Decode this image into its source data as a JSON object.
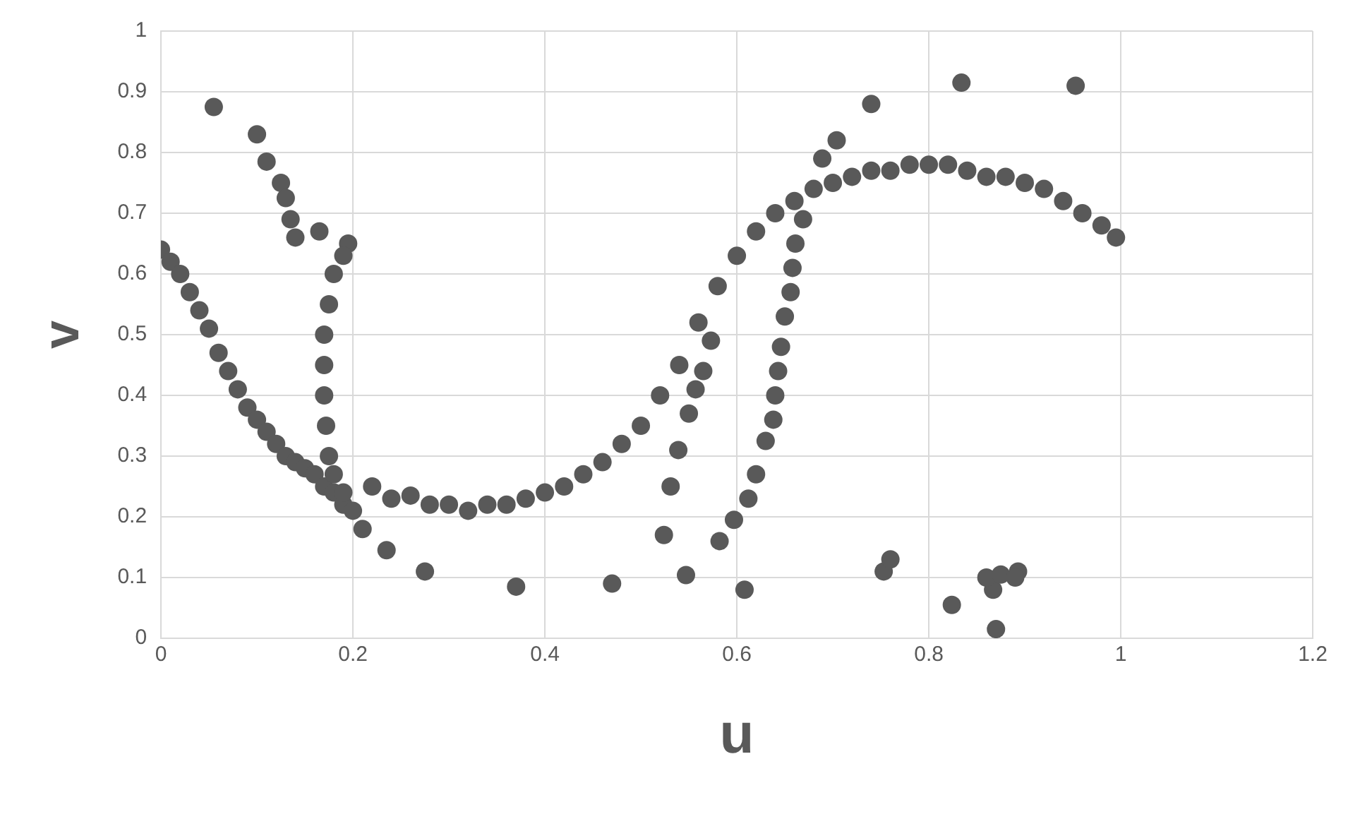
{
  "chart_data": {
    "type": "scatter",
    "xlabel": "u",
    "ylabel": "v",
    "xlim": [
      0,
      1.2
    ],
    "ylim": [
      0,
      1
    ],
    "xticks": [
      0,
      0.2,
      0.4,
      0.6,
      0.8,
      1,
      1.2
    ],
    "yticks": [
      0,
      0.1,
      0.2,
      0.3,
      0.4,
      0.5,
      0.6,
      0.7,
      0.8,
      0.9,
      1
    ],
    "grid": true,
    "legend": false,
    "marker": "circle",
    "series": [
      {
        "color": "#595959",
        "x": [
          0,
          0.01,
          0.02,
          0.03,
          0.04,
          0.05,
          0.06,
          0.07,
          0.08,
          0.09,
          0.1,
          0.11,
          0.12,
          0.13,
          0.14,
          0.15,
          0.16,
          0.17,
          0.18,
          0.19,
          0.2,
          0.22,
          0.24,
          0.26,
          0.28,
          0.3,
          0.32,
          0.34,
          0.36,
          0.38,
          0.4,
          0.42,
          0.44,
          0.46,
          0.48,
          0.5,
          0.52,
          0.54,
          0.56,
          0.58,
          0.6,
          0.62,
          0.64,
          0.66,
          0.68,
          0.7,
          0.72,
          0.74,
          0.76,
          0.78,
          0.8,
          0.82,
          0.84,
          0.86,
          0.88,
          0.9,
          0.92,
          0.94,
          0.96,
          0.98,
          0.995,
          0.195,
          0.19,
          0.18,
          0.175,
          0.17,
          0.17,
          0.17,
          0.172,
          0.175,
          0.18,
          0.19,
          0.055,
          0.1,
          0.11,
          0.125,
          0.13,
          0.135,
          0.14,
          0.165,
          0.21,
          0.235,
          0.275,
          0.37,
          0.47,
          0.547,
          0.524,
          0.531,
          0.539,
          0.55,
          0.557,
          0.565,
          0.573,
          0.608,
          0.582,
          0.597,
          0.612,
          0.62,
          0.63,
          0.638,
          0.64,
          0.643,
          0.646,
          0.65,
          0.656,
          0.658,
          0.661,
          0.669,
          0.689,
          0.704,
          0.74,
          0.834,
          0.953,
          0.753,
          0.76,
          0.824,
          0.87,
          0.867,
          0.86,
          0.875,
          0.893,
          0.89
        ],
        "values": [
          0.64,
          0.62,
          0.6,
          0.57,
          0.54,
          0.51,
          0.47,
          0.44,
          0.41,
          0.38,
          0.36,
          0.34,
          0.32,
          0.3,
          0.29,
          0.28,
          0.27,
          0.25,
          0.24,
          0.22,
          0.21,
          0.25,
          0.23,
          0.235,
          0.22,
          0.22,
          0.21,
          0.22,
          0.22,
          0.23,
          0.24,
          0.25,
          0.27,
          0.29,
          0.32,
          0.35,
          0.4,
          0.45,
          0.52,
          0.58,
          0.63,
          0.67,
          0.7,
          0.72,
          0.74,
          0.75,
          0.76,
          0.77,
          0.77,
          0.78,
          0.78,
          0.78,
          0.77,
          0.76,
          0.76,
          0.75,
          0.74,
          0.72,
          0.7,
          0.68,
          0.66,
          0.65,
          0.63,
          0.6,
          0.55,
          0.5,
          0.45,
          0.4,
          0.35,
          0.3,
          0.27,
          0.24,
          0.875,
          0.83,
          0.785,
          0.75,
          0.725,
          0.69,
          0.66,
          0.67,
          0.18,
          0.145,
          0.11,
          0.085,
          0.09,
          0.104,
          0.17,
          0.25,
          0.31,
          0.37,
          0.41,
          0.44,
          0.49,
          0.08,
          0.16,
          0.195,
          0.23,
          0.27,
          0.325,
          0.36,
          0.4,
          0.44,
          0.48,
          0.53,
          0.57,
          0.61,
          0.65,
          0.69,
          0.79,
          0.82,
          0.88,
          0.915,
          0.91,
          0.11,
          0.13,
          0.055,
          0.015,
          0.08,
          0.1,
          0.105,
          0.11,
          0.1
        ]
      }
    ]
  }
}
